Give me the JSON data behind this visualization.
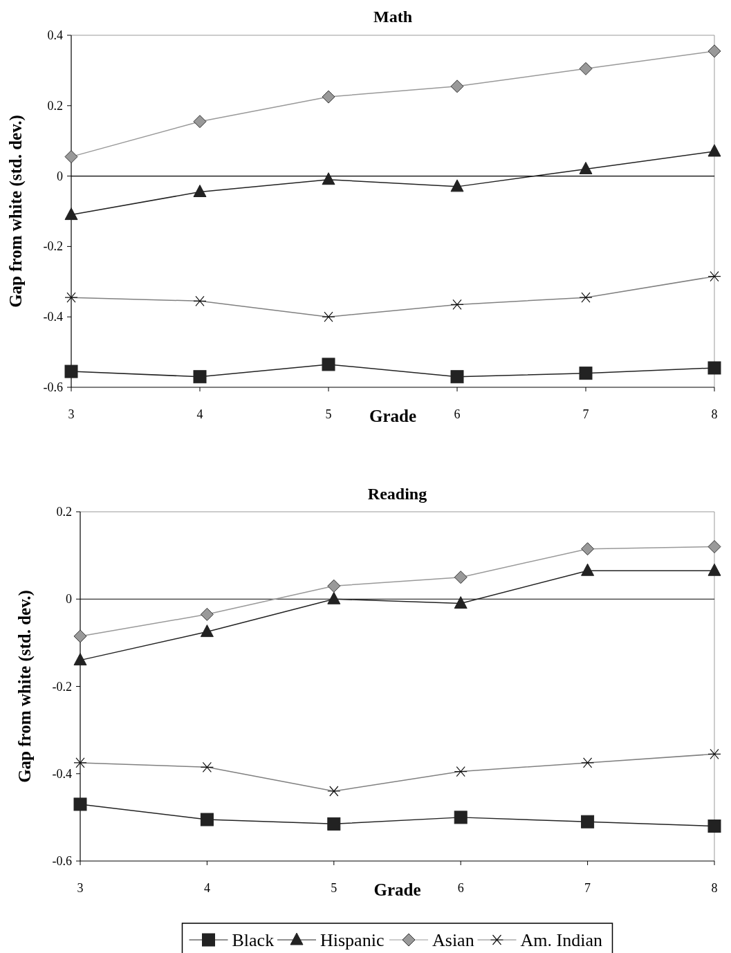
{
  "chart_data": [
    {
      "type": "line",
      "title": "Math",
      "xlabel": "Grade",
      "ylabel": "Gap from white (std. dev.)",
      "x": [
        3,
        4,
        5,
        6,
        7,
        8
      ],
      "xlim": [
        3,
        8
      ],
      "xticks": [
        3,
        4,
        5,
        6,
        7,
        8
      ],
      "ylim": [
        -0.6,
        0.4
      ],
      "yticks": [
        -0.6,
        -0.4,
        -0.2,
        0,
        0.2,
        0.4
      ],
      "grid": false,
      "legend": false,
      "line_style": "solid",
      "ref_lines": [
        {
          "axis": "y",
          "value": 0,
          "color": "#000000"
        }
      ],
      "series": [
        {
          "color": "#222222",
          "marker": "square",
          "values": [
            -0.555,
            -0.57,
            -0.535,
            -0.57,
            -0.56,
            -0.545
          ]
        },
        {
          "color": "#222222",
          "marker": "triangle",
          "values": [
            -0.11,
            -0.045,
            -0.01,
            -0.03,
            0.02,
            0.07
          ]
        },
        {
          "color": "#999999",
          "marker": "diamond",
          "values": [
            0.055,
            0.155,
            0.225,
            0.255,
            0.305,
            0.355
          ]
        },
        {
          "color": "#808080",
          "marker": "cross",
          "values": [
            -0.345,
            -0.355,
            -0.4,
            -0.365,
            -0.345,
            -0.285
          ]
        }
      ]
    },
    {
      "type": "line",
      "title": "Reading",
      "xlabel": "Grade",
      "ylabel": "Gap from white (std. dev.)",
      "x": [
        3,
        4,
        5,
        6,
        7,
        8
      ],
      "xlim": [
        3,
        8
      ],
      "xticks": [
        3,
        4,
        5,
        6,
        7,
        8
      ],
      "ylim": [
        -0.6,
        0.2
      ],
      "yticks": [
        -0.6,
        -0.4,
        -0.2,
        0,
        0.2
      ],
      "grid": false,
      "legend": "bottom",
      "line_style": "solid",
      "ref_lines": [
        {
          "axis": "y",
          "value": 0,
          "color": "#000000"
        }
      ],
      "series": [
        {
          "name": "Black",
          "color": "#222222",
          "marker": "square",
          "values": [
            -0.47,
            -0.505,
            -0.515,
            -0.5,
            -0.51,
            -0.52
          ]
        },
        {
          "name": "Hispanic",
          "color": "#222222",
          "marker": "triangle",
          "values": [
            -0.14,
            -0.075,
            0.0,
            -0.01,
            0.065,
            0.065
          ]
        },
        {
          "name": "Asian",
          "color": "#999999",
          "marker": "diamond",
          "values": [
            -0.085,
            -0.035,
            0.03,
            0.05,
            0.115,
            0.12
          ]
        },
        {
          "name": "Am. Indian",
          "color": "#808080",
          "marker": "cross",
          "values": [
            -0.375,
            -0.385,
            -0.44,
            -0.395,
            -0.375,
            -0.355
          ]
        }
      ]
    }
  ]
}
